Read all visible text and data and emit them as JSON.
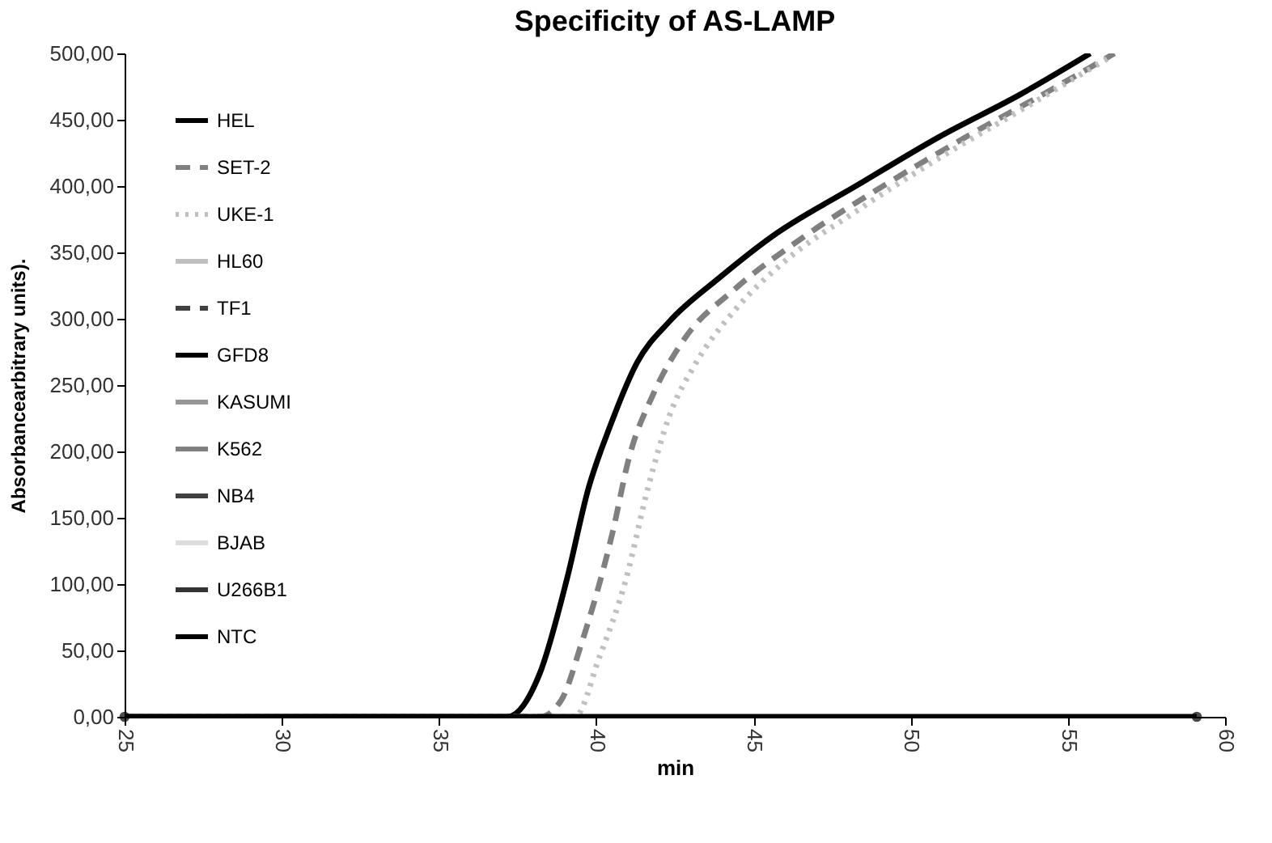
{
  "chart_data": {
    "type": "line",
    "title": "Specificity of AS-LAMP",
    "xlabel": "min",
    "ylabel": "Absorbancearbitrary units).",
    "xlim": [
      25,
      60
    ],
    "xticks": [
      25,
      30,
      35,
      40,
      45,
      50,
      55,
      60
    ],
    "ylim": [
      0,
      500
    ],
    "yticks": [
      {
        "value": 0,
        "label": "0,00"
      },
      {
        "value": 50,
        "label": "50,00"
      },
      {
        "value": 100,
        "label": "100,00"
      },
      {
        "value": 150,
        "label": "150,00"
      },
      {
        "value": 200,
        "label": "200,00"
      },
      {
        "value": 250,
        "label": "250,00"
      },
      {
        "value": 300,
        "label": "300,00"
      },
      {
        "value": 350,
        "label": "350,00"
      },
      {
        "value": 400,
        "label": "400,00"
      },
      {
        "value": 450,
        "label": "450,00"
      },
      {
        "value": 500,
        "label": "500,00"
      }
    ],
    "grid": false,
    "legend": "top left",
    "series": [
      {
        "name": "HEL",
        "color": "#000000",
        "line_style": "solid",
        "x": [
          25,
          37.18,
          38.21,
          39.07,
          39.75,
          40.44,
          41.3,
          42.33,
          43.87,
          45.59,
          48.33,
          50.9,
          53.48,
          55.71
        ],
        "values": [
          0,
          0,
          33,
          104,
          172,
          219,
          267,
          298,
          330,
          362,
          401,
          437,
          469,
          500
        ]
      },
      {
        "name": "SET-2",
        "color": "#808080",
        "line_style": "dashed",
        "x": [
          25,
          38.21,
          38.9,
          39.5,
          40.53,
          41.04,
          41.81,
          42.84,
          44.39,
          46.62,
          49.19,
          51.76,
          54.5,
          56.48
        ],
        "values": [
          0,
          0,
          13,
          53,
          140,
          195,
          243,
          286,
          322,
          362,
          401,
          437,
          473,
          500
        ]
      },
      {
        "name": "UKE-1",
        "color": "#c0c0c0",
        "line_style": "dotted",
        "x": [
          25,
          39.32,
          40.1,
          40.95,
          41.64,
          42.33,
          43.18,
          44.39,
          45.93,
          48.33,
          50.9,
          53.48,
          56.4
        ],
        "values": [
          0,
          0,
          45,
          104,
          172,
          227,
          267,
          306,
          342,
          382,
          421,
          457,
          498
        ]
      },
      {
        "name": "HL60",
        "color": "#c0c0c0",
        "line_style": "solid"
      },
      {
        "name": "TF1",
        "color": "#404040",
        "line_style": "dashed"
      },
      {
        "name": "GFD8",
        "color": "#000000",
        "line_style": "solid"
      },
      {
        "name": "KASUMI",
        "color": "#969696",
        "line_style": "solid"
      },
      {
        "name": "K562",
        "color": "#808080",
        "line_style": "solid"
      },
      {
        "name": "NB4",
        "color": "#404040",
        "line_style": "solid"
      },
      {
        "name": "BJAB",
        "color": "#dddddd",
        "line_style": "solid"
      },
      {
        "name": "U266B1",
        "color": "#333333",
        "line_style": "solid"
      },
      {
        "name": "NTC",
        "color": "#000000",
        "line_style": "solid",
        "marker": "circle",
        "x": [
          25,
          59.1
        ],
        "values": [
          0,
          0
        ]
      }
    ]
  }
}
